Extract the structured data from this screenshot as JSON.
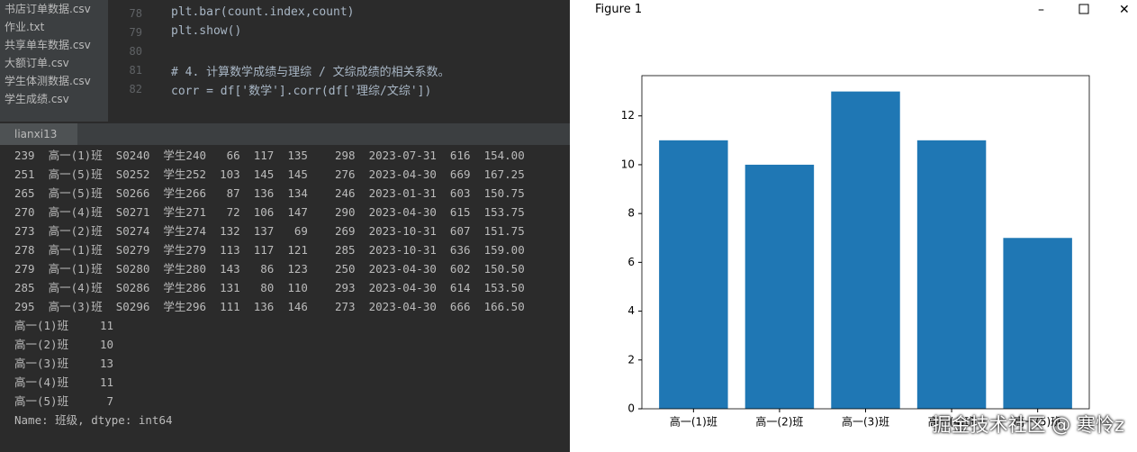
{
  "project_files": [
    "书店订单数据.csv",
    "作业.txt",
    "共享单车数据.csv",
    "大额订单.csv",
    "学生体测数据.csv",
    "学生成绩.csv"
  ],
  "editor": {
    "lines": [
      {
        "number": 78,
        "text": "plt.bar(count.index,count)"
      },
      {
        "number": 79,
        "text": "plt.show()"
      },
      {
        "number": 80
      },
      {
        "number": 81,
        "text": "# 4. 计算数学成绩与理综 / 文综成绩的相关系数。"
      },
      {
        "number": 82,
        "text": "corr = df['数学'].corr(df['理综/文综'])"
      }
    ]
  },
  "run_tab": "lianxi13",
  "console": {
    "rows": [
      "239  高一(1)班  S0240  学生240   66  117  135    298  2023-07-31  616  154.00",
      "251  高一(5)班  S0252  学生252  103  145  145    276  2023-04-30  669  167.25",
      "265  高一(5)班  S0266  学生266   87  136  134    246  2023-01-31  603  150.75",
      "270  高一(4)班  S0271  学生271   72  106  147    290  2023-04-30  615  153.75",
      "273  高一(2)班  S0274  学生274  132  137   69    269  2023-10-31  607  151.75",
      "278  高一(1)班  S0279  学生279  113  117  121    285  2023-10-31  636  159.00",
      "279  高一(1)班  S0280  学生280  143   86  123    250  2023-04-30  602  150.50",
      "285  高一(4)班  S0286  学生286  131   80  110    293  2023-04-30  614  153.50",
      "295  高一(3)班  S0296  学生296  111  136  146    273  2023-04-30  666  166.50"
    ],
    "series_rows": [
      [
        "高一(1)班",
        11
      ],
      [
        "高一(2)班",
        10
      ],
      [
        "高一(3)班",
        13
      ],
      [
        "高一(4)班",
        11
      ],
      [
        "高一(5)班",
        7
      ]
    ],
    "footer": "Name: 班级, dtype: int64"
  },
  "figure_title": "Figure 1",
  "chart_data": {
    "type": "bar",
    "categories": [
      "高一(1)班",
      "高一(2)班",
      "高一(3)班",
      "高一(4)班",
      "高一(5)班"
    ],
    "values": [
      11,
      10,
      13,
      11,
      7
    ],
    "color": "#1f77b4",
    "xlim": [
      -0.6,
      4.6
    ],
    "ylim": [
      0,
      13.65
    ],
    "yticks": [
      0,
      2,
      4,
      6,
      8,
      10,
      12
    ]
  },
  "watermark": "掘金技术社区 @ 寒怜z"
}
